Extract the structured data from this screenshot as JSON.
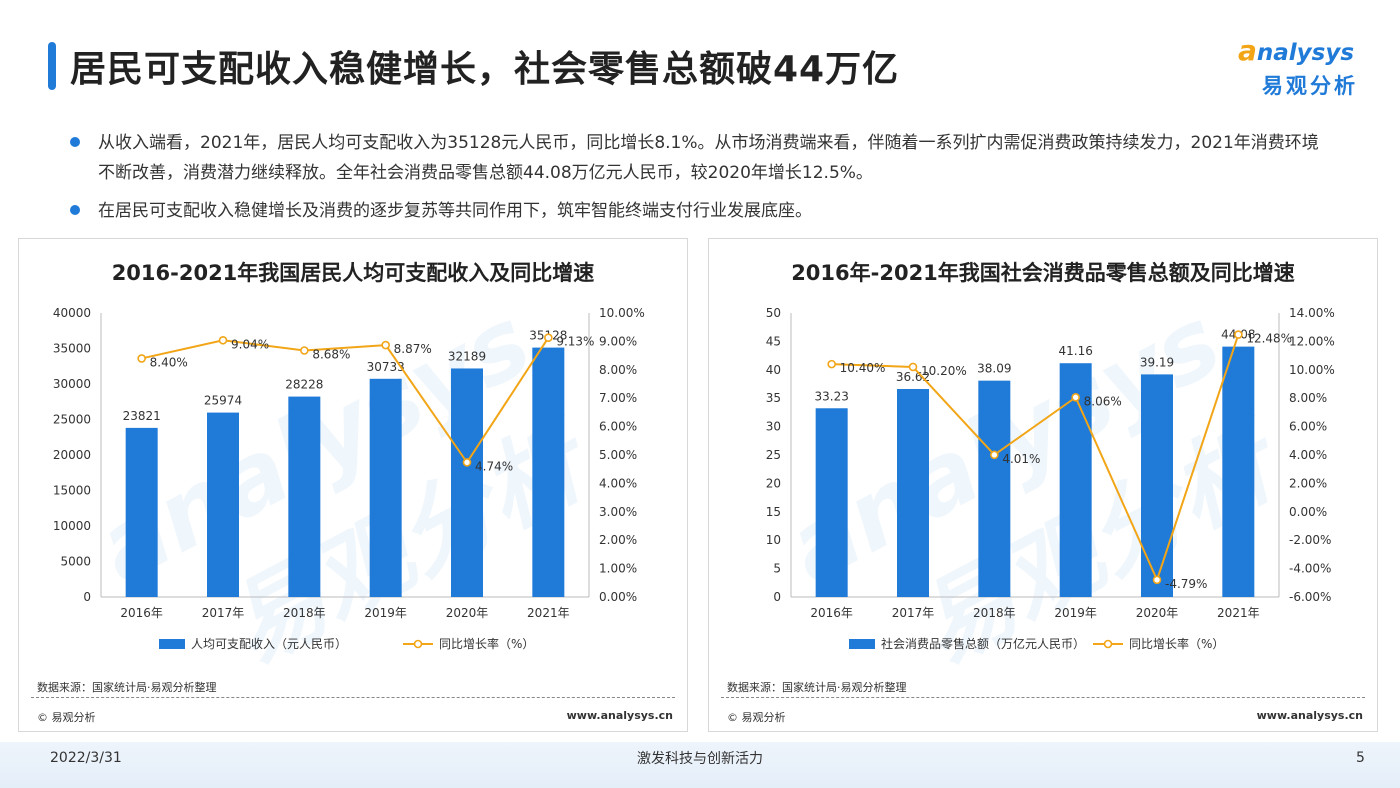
{
  "page": {
    "title": "居民可支配收入稳健增长，社会零售总额破44万亿",
    "logo_en_initial": "a",
    "logo_en_rest": "nalysys",
    "logo_cn": "易观分析",
    "watermark_en": "analysys",
    "watermark_cn": "易观分析",
    "bullets": [
      "从收入端看，2021年，居民人均可支配收入为35128元人民币，同比增长8.1%。从市场消费端来看，伴随着一系列扩内需促消费政策持续发力，2021年消费环境不断改善，消费潜力继续释放。全年社会消费品零售总额44.08万亿元人民币，较2020年增长12.5%。",
      "在居民可支配收入稳健增长及消费的逐步复苏等共同作用下，筑牢智能终端支付行业发展底座。"
    ],
    "footer": {
      "date": "2022/3/31",
      "slogan": "激发科技与创新活力",
      "page_number": "5"
    }
  },
  "panels": [
    {
      "source": "数据来源：国家统计局·易观分析整理",
      "copyright": "© 易观分析",
      "website": "www.analysys.cn"
    },
    {
      "source": "数据来源：国家统计局·易观分析整理",
      "copyright": "© 易观分析",
      "website": "www.analysys.cn"
    }
  ],
  "colors": {
    "bar": "#1f7ad8",
    "line": "#f2a516",
    "accent": "#1f7ad8"
  },
  "chart_data": [
    {
      "type": "bar",
      "title": "2016-2021年我国居民人均可支配收入及同比增速",
      "categories": [
        "2016年",
        "2017年",
        "2018年",
        "2019年",
        "2020年",
        "2021年"
      ],
      "series": [
        {
          "name": "人均可支配收入（元人民币）",
          "type": "bar",
          "axis": "left",
          "values": [
            23821,
            25974,
            28228,
            30733,
            32189,
            35128
          ]
        },
        {
          "name": "同比增长率（%）",
          "type": "line",
          "axis": "right",
          "values": [
            8.4,
            9.04,
            8.68,
            8.87,
            4.74,
            9.13
          ]
        }
      ],
      "bar_labels": [
        "23821",
        "25974",
        "28228",
        "30733",
        "32189",
        "35128"
      ],
      "line_labels": [
        "8.40%",
        "9.04%",
        "8.68%",
        "8.87%",
        "4.74%",
        "9.13%"
      ],
      "y_left": {
        "min": 0,
        "max": 40000,
        "ticks": [
          "0",
          "5000",
          "10000",
          "15000",
          "20000",
          "25000",
          "30000",
          "35000",
          "40000"
        ]
      },
      "y_right": {
        "min": 0,
        "max": 10,
        "ticks": [
          "0.00%",
          "1.00%",
          "2.00%",
          "3.00%",
          "4.00%",
          "5.00%",
          "6.00%",
          "7.00%",
          "8.00%",
          "9.00%",
          "10.00%"
        ]
      },
      "legend_position": "bottom",
      "grid": false
    },
    {
      "type": "bar",
      "title": "2016年-2021年我国社会消费品零售总额及同比增速",
      "categories": [
        "2016年",
        "2017年",
        "2018年",
        "2019年",
        "2020年",
        "2021年"
      ],
      "series": [
        {
          "name": "社会消费品零售总额（万亿元人民币）",
          "type": "bar",
          "axis": "left",
          "values": [
            33.23,
            36.62,
            38.09,
            41.16,
            39.19,
            44.08
          ]
        },
        {
          "name": "同比增长率（%）",
          "type": "line",
          "axis": "right",
          "values": [
            10.4,
            10.2,
            4.01,
            8.06,
            -4.79,
            12.48
          ]
        }
      ],
      "bar_labels": [
        "33.23",
        "36.62",
        "38.09",
        "41.16",
        "39.19",
        "44.08"
      ],
      "line_labels": [
        "10.40%",
        "10.20%",
        "4.01%",
        "8.06%",
        "-4.79%",
        "12.48%"
      ],
      "y_left": {
        "min": 0,
        "max": 50,
        "ticks": [
          "0",
          "5",
          "10",
          "15",
          "20",
          "25",
          "30",
          "35",
          "40",
          "45",
          "50"
        ]
      },
      "y_right": {
        "min": -6,
        "max": 14,
        "ticks": [
          "-6.00%",
          "-4.00%",
          "-2.00%",
          "0.00%",
          "2.00%",
          "4.00%",
          "6.00%",
          "8.00%",
          "10.00%",
          "12.00%",
          "14.00%"
        ]
      },
      "legend_position": "bottom",
      "grid": false
    }
  ]
}
